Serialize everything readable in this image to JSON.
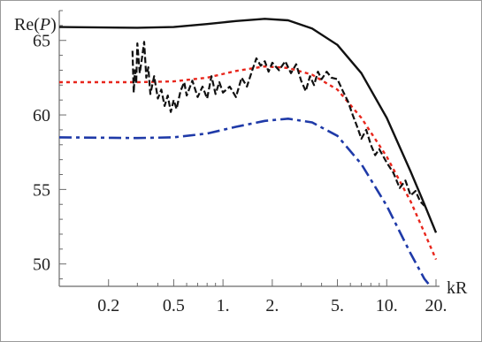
{
  "chart_data": {
    "type": "line",
    "title": "",
    "xlabel": "kR",
    "ylabel": "Re(P)",
    "ylabel_parts": {
      "prefix": "Re(",
      "var": "P",
      "suffix": ")"
    },
    "x_scale": "log",
    "xlim": [
      0.1,
      20
    ],
    "ylim": [
      48.5,
      67
    ],
    "x_ticks": [
      {
        "value": 0.2,
        "label": "0.2"
      },
      {
        "value": 0.5,
        "label": "0.5"
      },
      {
        "value": 1,
        "label": "1."
      },
      {
        "value": 2,
        "label": "2."
      },
      {
        "value": 5,
        "label": "5."
      },
      {
        "value": 10,
        "label": "10."
      },
      {
        "value": 20,
        "label": "20."
      }
    ],
    "y_ticks": [
      {
        "value": 50,
        "label": "50"
      },
      {
        "value": 55,
        "label": "55"
      },
      {
        "value": 60,
        "label": "60"
      },
      {
        "value": 65,
        "label": "65"
      }
    ],
    "grid": false,
    "legend": "none",
    "series": [
      {
        "style": "solid",
        "color": "#111111",
        "points": [
          [
            0.1,
            65.9
          ],
          [
            0.3,
            65.85
          ],
          [
            0.5,
            65.9
          ],
          [
            0.8,
            66.1
          ],
          [
            1.2,
            66.3
          ],
          [
            1.8,
            66.45
          ],
          [
            2.5,
            66.35
          ],
          [
            3.5,
            65.8
          ],
          [
            5,
            64.7
          ],
          [
            7,
            62.8
          ],
          [
            10,
            59.8
          ],
          [
            14,
            56.2
          ],
          [
            17,
            54.0
          ],
          [
            20,
            52.1
          ]
        ]
      },
      {
        "style": "dotted",
        "color": "#e8261c",
        "points": [
          [
            0.1,
            62.2
          ],
          [
            0.3,
            62.2
          ],
          [
            0.5,
            62.25
          ],
          [
            0.8,
            62.5
          ],
          [
            1.2,
            62.95
          ],
          [
            1.8,
            63.25
          ],
          [
            2.5,
            63.15
          ],
          [
            3.5,
            62.7
          ],
          [
            5,
            61.7
          ],
          [
            7,
            59.8
          ],
          [
            10,
            57.2
          ],
          [
            14,
            54.2
          ],
          [
            17,
            52.1
          ],
          [
            20,
            50.3
          ]
        ]
      },
      {
        "style": "dash-dot",
        "color": "#1f3aa8",
        "points": [
          [
            0.1,
            58.5
          ],
          [
            0.3,
            58.45
          ],
          [
            0.5,
            58.5
          ],
          [
            0.8,
            58.75
          ],
          [
            1.2,
            59.2
          ],
          [
            1.8,
            59.6
          ],
          [
            2.5,
            59.75
          ],
          [
            3.5,
            59.5
          ],
          [
            5,
            58.6
          ],
          [
            7,
            56.7
          ],
          [
            10,
            53.9
          ],
          [
            14,
            50.7
          ],
          [
            17,
            49.0
          ],
          [
            18.5,
            48.5
          ]
        ]
      },
      {
        "style": "dashed-noisy",
        "color": "#111111",
        "points": [
          [
            0.28,
            64.3
          ],
          [
            0.285,
            61.5
          ],
          [
            0.29,
            63.0
          ],
          [
            0.295,
            62.1
          ],
          [
            0.3,
            64.8
          ],
          [
            0.31,
            62.8
          ],
          [
            0.32,
            63.8
          ],
          [
            0.33,
            64.9
          ],
          [
            0.34,
            62.5
          ],
          [
            0.35,
            63.2
          ],
          [
            0.36,
            61.4
          ],
          [
            0.38,
            62.6
          ],
          [
            0.4,
            61.1
          ],
          [
            0.42,
            61.7
          ],
          [
            0.44,
            60.6
          ],
          [
            0.46,
            61.3
          ],
          [
            0.48,
            60.2
          ],
          [
            0.5,
            61.0
          ],
          [
            0.52,
            60.4
          ],
          [
            0.55,
            61.6
          ],
          [
            0.58,
            62.2
          ],
          [
            0.6,
            61.3
          ],
          [
            0.65,
            62.3
          ],
          [
            0.7,
            61.2
          ],
          [
            0.75,
            61.9
          ],
          [
            0.8,
            61.1
          ],
          [
            0.85,
            62.6
          ],
          [
            0.9,
            61.4
          ],
          [
            0.95,
            62.2
          ],
          [
            1.0,
            61.5
          ],
          [
            1.1,
            61.9
          ],
          [
            1.2,
            61.2
          ],
          [
            1.3,
            62.5
          ],
          [
            1.4,
            61.9
          ],
          [
            1.5,
            62.9
          ],
          [
            1.6,
            63.8
          ],
          [
            1.7,
            63.3
          ],
          [
            1.8,
            63.6
          ],
          [
            1.9,
            62.9
          ],
          [
            2.0,
            63.5
          ],
          [
            2.2,
            63.0
          ],
          [
            2.4,
            63.6
          ],
          [
            2.6,
            62.8
          ],
          [
            2.8,
            63.4
          ],
          [
            3.0,
            62.3
          ],
          [
            3.2,
            61.6
          ],
          [
            3.4,
            62.6
          ],
          [
            3.6,
            62.0
          ],
          [
            3.8,
            62.9
          ],
          [
            4.0,
            62.4
          ],
          [
            4.3,
            62.9
          ],
          [
            4.6,
            62.5
          ],
          [
            5.0,
            62.4
          ],
          [
            5.4,
            61.6
          ],
          [
            5.8,
            60.9
          ],
          [
            6.2,
            60.0
          ],
          [
            6.6,
            59.2
          ],
          [
            7.0,
            58.4
          ],
          [
            7.5,
            59.0
          ],
          [
            8.0,
            58.0
          ],
          [
            8.5,
            57.3
          ],
          [
            9.0,
            57.7
          ],
          [
            10.0,
            56.8
          ],
          [
            11.0,
            56.1
          ],
          [
            12.0,
            55.1
          ],
          [
            13.0,
            55.6
          ],
          [
            14.0,
            54.6
          ],
          [
            15.0,
            54.9
          ],
          [
            16.0,
            54.2
          ],
          [
            17.0,
            53.9
          ]
        ]
      }
    ]
  }
}
